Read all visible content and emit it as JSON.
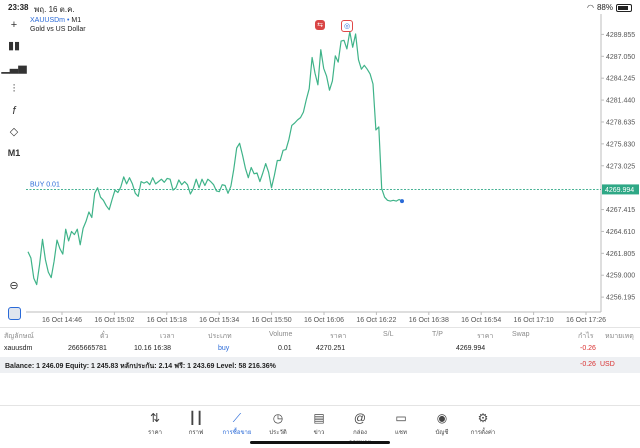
{
  "status": {
    "time": "23:38",
    "date": "พฤ. 16 ต.ค.",
    "battery": "88%"
  },
  "symbol": {
    "name": "XAUUSDm",
    "dot": "•",
    "tf": "M1",
    "desc": "Gold vs US Dollar"
  },
  "toolbar": {
    "tf": "M1"
  },
  "chart_data": {
    "type": "line",
    "series": [
      {
        "values": [
          4262.0,
          4261.2,
          4258.6,
          4257.8,
          4260.4,
          4263.6,
          4261.0,
          4259.4,
          4258.7,
          4260.8,
          4263.5,
          4262.4,
          4261.7,
          4264.9,
          4263.4,
          4264.6,
          4264.2,
          4264.9,
          4262.9,
          4265.0,
          4265.9,
          4267.1,
          4266.4,
          4269.5,
          4270.2,
          4269.0,
          4268.6,
          4267.9,
          4267.4,
          4268.7,
          4269.9,
          4269.6,
          4270.3,
          4271.6,
          4270.7,
          4271.5,
          4270.7,
          4269.5,
          4269.1,
          4271.0,
          4270.8,
          4271.0,
          4270.6,
          4271.5,
          4270.7,
          4271.0,
          4271.3,
          4270.9,
          4271.4,
          4271.3,
          4269.9,
          4270.2,
          4271.2,
          4270.6,
          4271.0,
          4270.6,
          4269.4,
          4270.1,
          4271.3,
          4270.2,
          4271.3,
          4270.5,
          4271.3,
          4271.0,
          4270.6,
          4269.8,
          4269.7,
          4270.6,
          4270.5,
          4269.5,
          4270.4,
          4272.6,
          4275.3,
          4275.9,
          4274.4,
          4272.7,
          4271.5,
          4272.8,
          4272.0,
          4272.1,
          4271.0,
          4272.1,
          4273.3,
          4272.2,
          4270.2,
          4271.8,
          4273.7,
          4273.7,
          4275.0,
          4275.1,
          4276.4,
          4278.2,
          4278.5,
          4278.9,
          4279.2,
          4279.9,
          4281.5,
          4282.9,
          4286.9,
          4284.9,
          4283.4,
          4287.9,
          4285.5,
          4284.5,
          4282.7,
          4283.9,
          4287.1,
          4286.3,
          4289.0,
          4289.1,
          4288.0,
          4290.2,
          4288.2,
          4289.9,
          4286.6,
          4285.4,
          4285.9,
          4285.4,
          4284.8,
          4283.5,
          4277.6,
          4278.0,
          4270.1,
          4269.0,
          4268.6,
          4268.5,
          4268.6,
          4268.5,
          4268.7,
          4268.5
        ]
      }
    ],
    "y_ticks": [
      "4289.855",
      "4287.050",
      "4284.245",
      "4281.440",
      "4278.635",
      "4275.830",
      "4273.025",
      "4267.415",
      "4264.610",
      "4261.805",
      "4259.000",
      "4256.195"
    ],
    "ylim": [
      4254.8,
      4291.7
    ],
    "x_ticks": [
      "16 Oct 14:46",
      "16 Oct 15:02",
      "16 Oct 15:18",
      "16 Oct 15:34",
      "16 Oct 15:50",
      "16 Oct 16:06",
      "16 Oct 16:22",
      "16 Oct 16:38",
      "16 Oct 16:54",
      "16 Oct 17:10",
      "16 Oct 17:26"
    ],
    "current_price": "4269.994",
    "order_line": {
      "label": "BUY 0.01",
      "price": 4269.994
    },
    "grid": false
  },
  "table": {
    "headers": [
      "สัญลักษณ์",
      "ตั๋ว",
      "เวลา",
      "ประเภท",
      "Volume",
      "ราคา",
      "S/L",
      "T/P",
      "ราคา",
      "Swap",
      "กำไร",
      "หมายเหตุ"
    ],
    "row": {
      "symbol": "xauusdm",
      "ticket": "2665665781",
      "time": "10.16 16:38",
      "type": "buy",
      "volume": "0.01",
      "price": "4270.251",
      "current": "4269.994",
      "profit": "-0.26"
    }
  },
  "balance": {
    "text": "Balance: 1 246.09 Equity: 1 245.83 หลักประกัน: 2.14 ฟรี: 1 243.69 Level: 58 216.36%",
    "profit": "-0.26",
    "currency": "USD"
  },
  "nav": [
    {
      "label": "ราคา",
      "icon": "quotes-icon"
    },
    {
      "label": "กราฟ",
      "icon": "chart-icon"
    },
    {
      "label": "การซื้อขาย",
      "icon": "trade-icon"
    },
    {
      "label": "ประวัติ",
      "icon": "history-icon"
    },
    {
      "label": "ข่าว",
      "icon": "news-icon"
    },
    {
      "label": "กล่องจดหมาย",
      "icon": "mailbox-icon"
    },
    {
      "label": "แชท",
      "icon": "chat-icon"
    },
    {
      "label": "บัญชี",
      "icon": "account-icon"
    },
    {
      "label": "การตั้งค่า",
      "icon": "settings-icon"
    }
  ],
  "colors": {
    "line": "#3fb389",
    "accent": "#2a6ad8",
    "loss": "#d93030",
    "price_tag": "#2fa886"
  }
}
